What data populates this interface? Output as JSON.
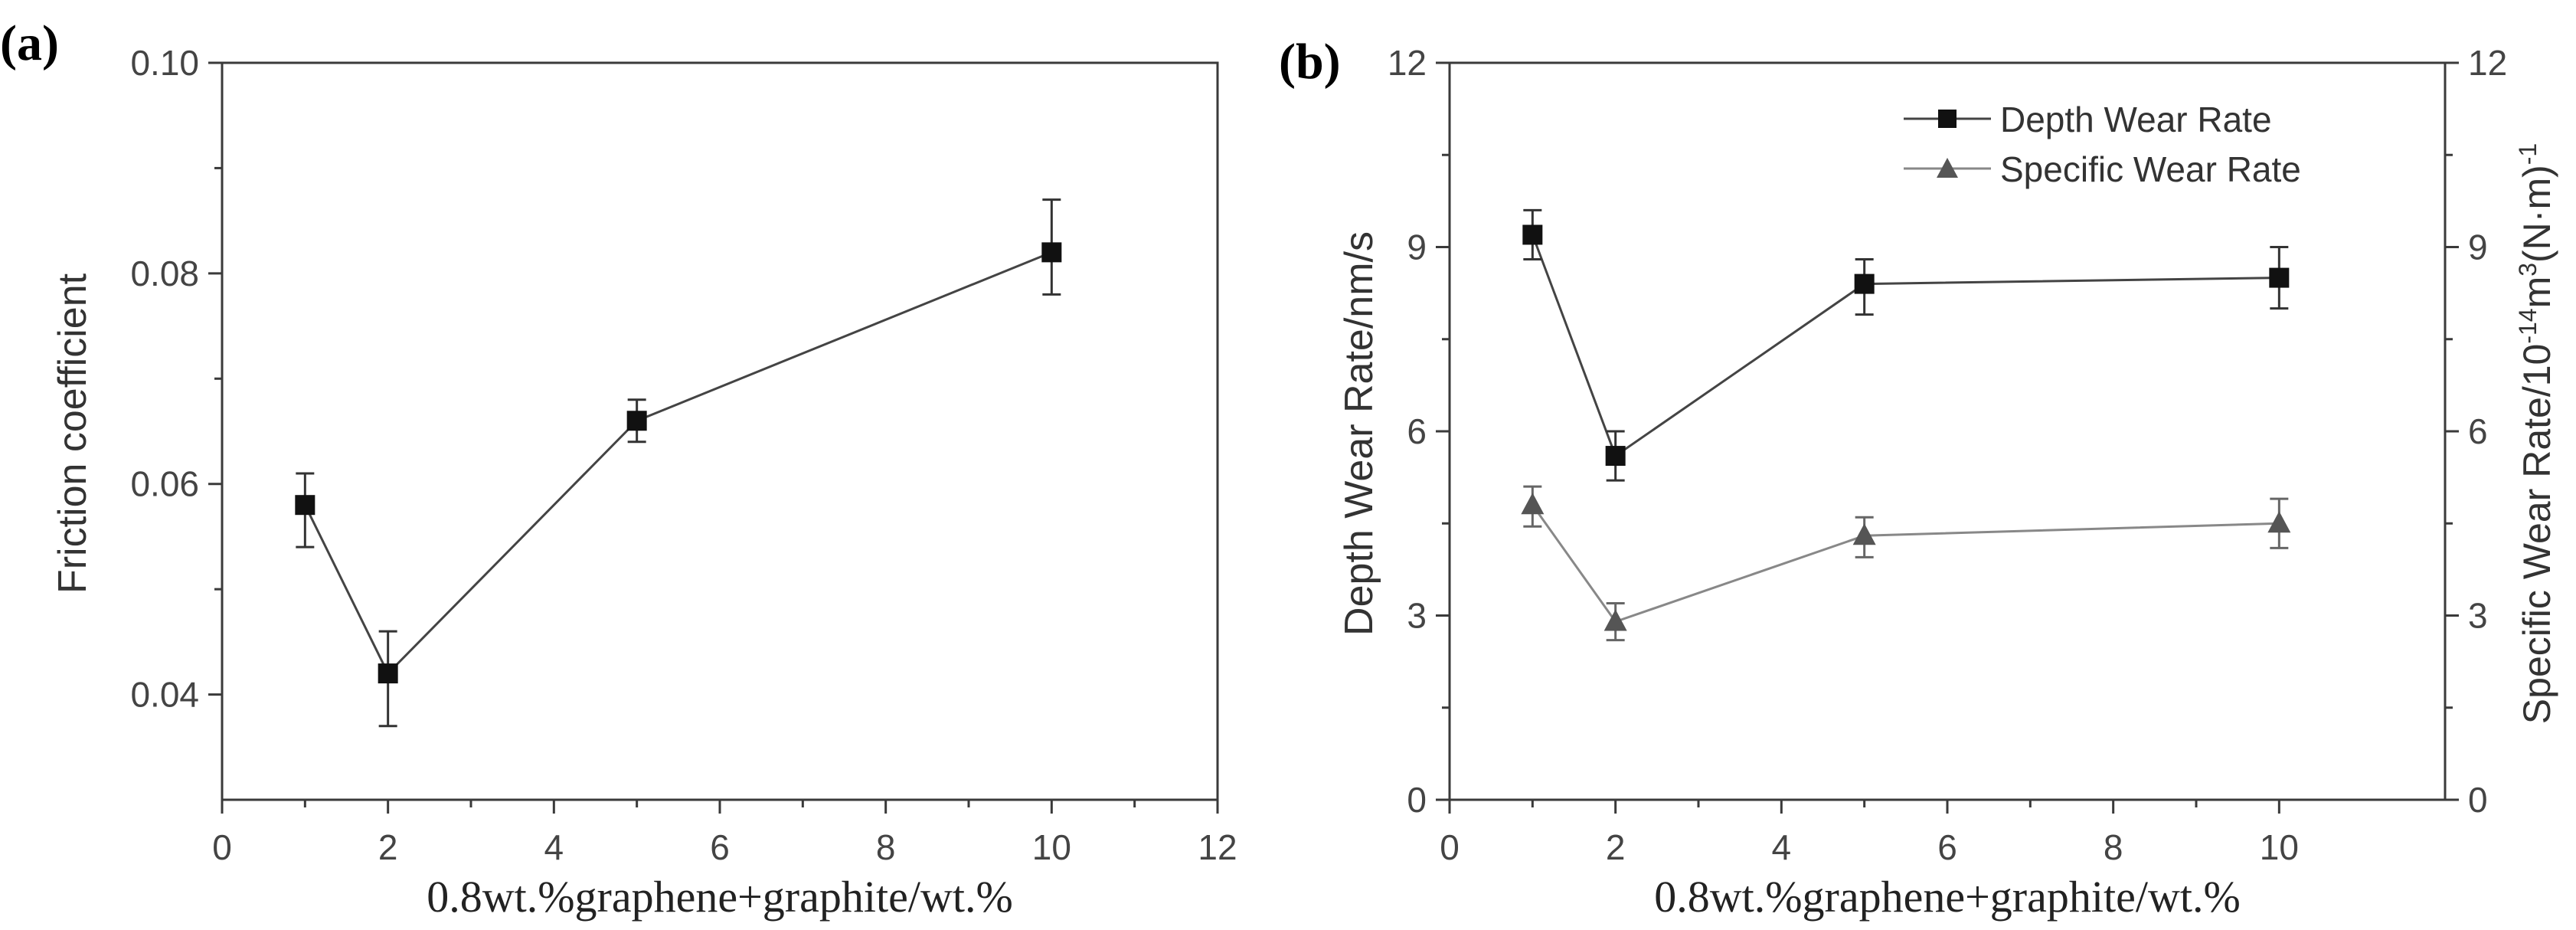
{
  "panels": {
    "a": {
      "label": "(a)"
    },
    "b": {
      "label": "(b)"
    }
  },
  "colors": {
    "axis": "#3a3a3a",
    "series_dark": "#111111",
    "series_gray": "#555555",
    "line_gray": "#888888"
  },
  "chart_data": [
    {
      "type": "line",
      "panel": "a",
      "title": "",
      "xlabel": "0.8wt.%graphene+graphite/wt.%",
      "ylabel": "Friction coefficient",
      "xlim": [
        0,
        12
      ],
      "ylim": [
        0.03,
        0.1
      ],
      "xticks": [
        0,
        2,
        4,
        6,
        8,
        10,
        12
      ],
      "xtick_labels": [
        "0",
        "2",
        "4",
        "6",
        "8",
        "10",
        "12"
      ],
      "yticks": [
        0.04,
        0.06,
        0.08,
        0.1
      ],
      "ytick_labels": [
        "0.04",
        "0.06",
        "0.08",
        "0.10"
      ],
      "series": [
        {
          "name": "Friction coefficient",
          "marker": "square",
          "x": [
            1,
            2,
            5,
            10
          ],
          "y": [
            0.058,
            0.042,
            0.066,
            0.082
          ],
          "err_up": [
            0.061,
            0.046,
            0.068,
            0.087
          ],
          "err_down": [
            0.054,
            0.037,
            0.064,
            0.078
          ]
        }
      ]
    },
    {
      "type": "line",
      "panel": "b",
      "title": "",
      "xlabel": "0.8wt.%graphene+graphite/wt.%",
      "ylabel": "Depth Wear Rate/nm/s",
      "ylabel_right_parts": [
        "Specific Wear Rate/10",
        "-14",
        "m",
        "3",
        "(N·m)",
        "-1"
      ],
      "xlim": [
        0,
        12
      ],
      "ylim": [
        0,
        12
      ],
      "ylim_right": [
        0,
        12
      ],
      "xticks": [
        0,
        2,
        4,
        6,
        8,
        10
      ],
      "xtick_labels": [
        "0",
        "2",
        "4",
        "6",
        "8",
        "10"
      ],
      "yticks": [
        0,
        3,
        6,
        9,
        12
      ],
      "ytick_labels": [
        "0",
        "3",
        "6",
        "9",
        "12"
      ],
      "yticks_right": [
        0,
        3,
        6,
        9,
        12
      ],
      "ytick_labels_right": [
        "0",
        "3",
        "6",
        "9",
        "12"
      ],
      "legend_position": "top-right",
      "series": [
        {
          "name": "Depth Wear Rate",
          "marker": "square",
          "axis": "left",
          "x": [
            1,
            2,
            5,
            10
          ],
          "y": [
            9.2,
            5.6,
            8.4,
            8.5
          ],
          "err_up": [
            9.6,
            6.0,
            8.8,
            9.0
          ],
          "err_down": [
            8.8,
            5.2,
            7.9,
            8.0
          ]
        },
        {
          "name": "Specific Wear Rate",
          "marker": "triangle",
          "axis": "right",
          "x": [
            1,
            2,
            5,
            10
          ],
          "y": [
            4.8,
            2.9,
            4.3,
            4.5
          ],
          "err_up": [
            5.1,
            3.2,
            4.6,
            4.9
          ],
          "err_down": [
            4.45,
            2.6,
            3.95,
            4.1
          ]
        }
      ]
    }
  ]
}
